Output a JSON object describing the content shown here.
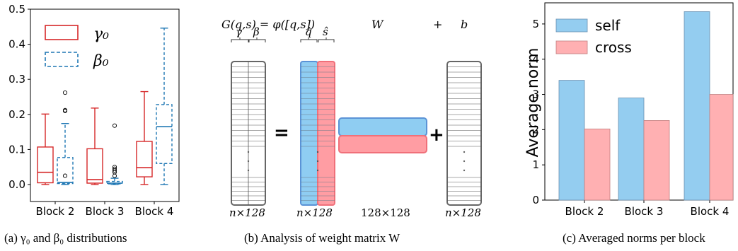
{
  "captions": {
    "a": "(a) γ₀ and β₀ distributions",
    "b": "(b) Analysis of weight matrix W",
    "c": "(c) Averaged norms per block"
  },
  "colors": {
    "gamma": "#d62728",
    "beta": "#1f77b4",
    "self": "#94cdf0",
    "cross": "#ffb0b2",
    "blue_fill": "#8fcdf2",
    "red_fill": "#ff9da3"
  },
  "diagram": {
    "formula": "G(q,s) = φ([q,s])",
    "w_label": "W",
    "plus_label": "+",
    "b_label": "b",
    "gamma": "γ",
    "beta": "β",
    "q_hat": "q̂",
    "s_hat": "ŝ",
    "equals": "=",
    "plus": "+",
    "dim_g": "n×128",
    "dim_phi": "n×128",
    "dim_w": "128×128",
    "dim_b": "n×128"
  },
  "chart_data": [
    {
      "type": "box",
      "categories": [
        "Block 2",
        "Block 3",
        "Block 4"
      ],
      "ylim": [
        0,
        0.5
      ],
      "yticks": [
        "0.0",
        "0.1",
        "0.2",
        "0.3",
        "0.4",
        "0.5"
      ],
      "legend": [
        {
          "label": "γ₀",
          "style": "solid",
          "color": "#d62728"
        },
        {
          "label": "β₀",
          "style": "dashed",
          "color": "#1f77b4"
        }
      ],
      "series": [
        {
          "name": "γ₀",
          "boxes": [
            {
              "whislo": 0.0,
              "q1": 0.005,
              "med": 0.035,
              "q3": 0.107,
              "whishi": 0.201,
              "fliers": []
            },
            {
              "whislo": 0.0,
              "q1": 0.004,
              "med": 0.014,
              "q3": 0.102,
              "whishi": 0.218,
              "fliers": []
            },
            {
              "whislo": 0.0,
              "q1": 0.022,
              "med": 0.048,
              "q3": 0.123,
              "whishi": 0.265,
              "fliers": []
            }
          ]
        },
        {
          "name": "β₀",
          "boxes": [
            {
              "whislo": 0.0,
              "q1": 0.003,
              "med": 0.006,
              "q3": 0.077,
              "whishi": 0.174,
              "fliers": [
                0.262,
                0.21,
                0.212,
                0.025
              ]
            },
            {
              "whislo": 0.0,
              "q1": 0.002,
              "med": 0.004,
              "q3": 0.009,
              "whishi": 0.018,
              "fliers": [
                0.168,
                0.05,
                0.045,
                0.04,
                0.035,
                0.025
              ]
            },
            {
              "whislo": 0.0,
              "q1": 0.06,
              "med": 0.165,
              "q3": 0.228,
              "whishi": 0.446,
              "fliers": []
            }
          ]
        }
      ]
    },
    {
      "type": "bar",
      "categories": [
        "Block 2",
        "Block 3",
        "Block 4"
      ],
      "ylabel": "Average norm",
      "ylim": [
        0,
        5.6
      ],
      "yticks": [
        "0",
        "1",
        "2",
        "3",
        "4",
        "5"
      ],
      "legend_position": "top-left",
      "series": [
        {
          "name": "self",
          "values": [
            3.4,
            2.9,
            5.35
          ]
        },
        {
          "name": "cross",
          "values": [
            2.02,
            2.26,
            3.0
          ]
        }
      ]
    }
  ]
}
